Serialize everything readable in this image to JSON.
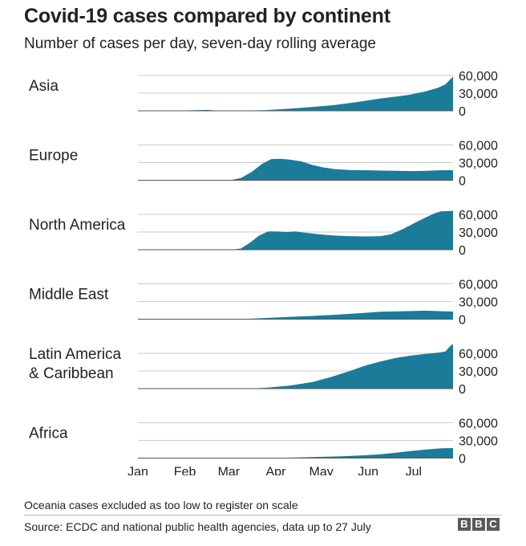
{
  "title": "Covid-19 cases compared by continent",
  "subtitle": "Number of cases per day, seven-day rolling average",
  "footnote": "Oceania cases excluded as too low to register on scale",
  "source": "Source: ECDC and national public health agencies, data up to 27 July",
  "logo": [
    "B",
    "B",
    "C"
  ],
  "colors": {
    "area": "#1a7c99",
    "grid": "#cccccc",
    "baseline": "#555555",
    "text": "#222222"
  },
  "chart_data": {
    "type": "area",
    "x_labels": [
      "Jan",
      "Feb",
      "Mar",
      "Apr",
      "May",
      "Jun",
      "Jul"
    ],
    "x_label_days": [
      0,
      31,
      60,
      91,
      121,
      152,
      182
    ],
    "x_end_day": 208,
    "ylim": [
      0,
      60000
    ],
    "y_ticks": [
      0,
      30000,
      60000
    ],
    "y_tick_labels": [
      "0",
      "30,000",
      "60,000"
    ],
    "grid": true,
    "panels": [
      {
        "name": "Asia",
        "points": [
          [
            0,
            0
          ],
          [
            28,
            300
          ],
          [
            40,
            1200
          ],
          [
            46,
            1500
          ],
          [
            50,
            800
          ],
          [
            55,
            200
          ],
          [
            70,
            300
          ],
          [
            85,
            1200
          ],
          [
            100,
            3500
          ],
          [
            115,
            6500
          ],
          [
            130,
            10000
          ],
          [
            145,
            15000
          ],
          [
            160,
            21000
          ],
          [
            170,
            24000
          ],
          [
            180,
            27500
          ],
          [
            190,
            33000
          ],
          [
            198,
            39000
          ],
          [
            203,
            45000
          ],
          [
            206,
            53000
          ],
          [
            208,
            58000
          ]
        ]
      },
      {
        "name": "Europe",
        "points": [
          [
            0,
            0
          ],
          [
            55,
            0
          ],
          [
            62,
            500
          ],
          [
            68,
            4000
          ],
          [
            75,
            14000
          ],
          [
            82,
            28000
          ],
          [
            88,
            36000
          ],
          [
            94,
            36500
          ],
          [
            100,
            35000
          ],
          [
            108,
            32000
          ],
          [
            115,
            26000
          ],
          [
            122,
            22000
          ],
          [
            130,
            19000
          ],
          [
            140,
            17500
          ],
          [
            150,
            17000
          ],
          [
            160,
            16500
          ],
          [
            170,
            16000
          ],
          [
            180,
            15500
          ],
          [
            190,
            16000
          ],
          [
            200,
            17000
          ],
          [
            208,
            17000
          ]
        ]
      },
      {
        "name": "North America",
        "points": [
          [
            0,
            0
          ],
          [
            62,
            0
          ],
          [
            68,
            2000
          ],
          [
            74,
            12000
          ],
          [
            80,
            24000
          ],
          [
            86,
            31000
          ],
          [
            92,
            31000
          ],
          [
            98,
            30000
          ],
          [
            104,
            31000
          ],
          [
            110,
            29000
          ],
          [
            120,
            26000
          ],
          [
            130,
            24000
          ],
          [
            140,
            23000
          ],
          [
            150,
            22500
          ],
          [
            160,
            23000
          ],
          [
            167,
            26000
          ],
          [
            175,
            35000
          ],
          [
            183,
            46000
          ],
          [
            190,
            55000
          ],
          [
            196,
            62000
          ],
          [
            200,
            65000
          ],
          [
            208,
            66000
          ]
        ]
      },
      {
        "name": "Middle East",
        "points": [
          [
            0,
            0
          ],
          [
            55,
            0
          ],
          [
            70,
            400
          ],
          [
            85,
            2000
          ],
          [
            100,
            4000
          ],
          [
            115,
            5500
          ],
          [
            130,
            7500
          ],
          [
            145,
            10000
          ],
          [
            160,
            12500
          ],
          [
            175,
            13500
          ],
          [
            190,
            14500
          ],
          [
            200,
            13500
          ],
          [
            208,
            13000
          ]
        ]
      },
      {
        "name": "Latin America\n& Caribbean",
        "points": [
          [
            0,
            0
          ],
          [
            72,
            0
          ],
          [
            85,
            1500
          ],
          [
            100,
            5000
          ],
          [
            115,
            11000
          ],
          [
            128,
            20000
          ],
          [
            140,
            30000
          ],
          [
            150,
            39000
          ],
          [
            160,
            46000
          ],
          [
            170,
            52000
          ],
          [
            180,
            56000
          ],
          [
            190,
            59000
          ],
          [
            198,
            61000
          ],
          [
            203,
            63000
          ],
          [
            206,
            72000
          ],
          [
            208,
            76000
          ]
        ]
      },
      {
        "name": "Africa",
        "points": [
          [
            0,
            0
          ],
          [
            75,
            0
          ],
          [
            90,
            300
          ],
          [
            105,
            900
          ],
          [
            120,
            2000
          ],
          [
            135,
            3200
          ],
          [
            150,
            4800
          ],
          [
            160,
            6500
          ],
          [
            170,
            9000
          ],
          [
            180,
            12000
          ],
          [
            190,
            14500
          ],
          [
            200,
            16500
          ],
          [
            208,
            17000
          ]
        ]
      }
    ]
  }
}
